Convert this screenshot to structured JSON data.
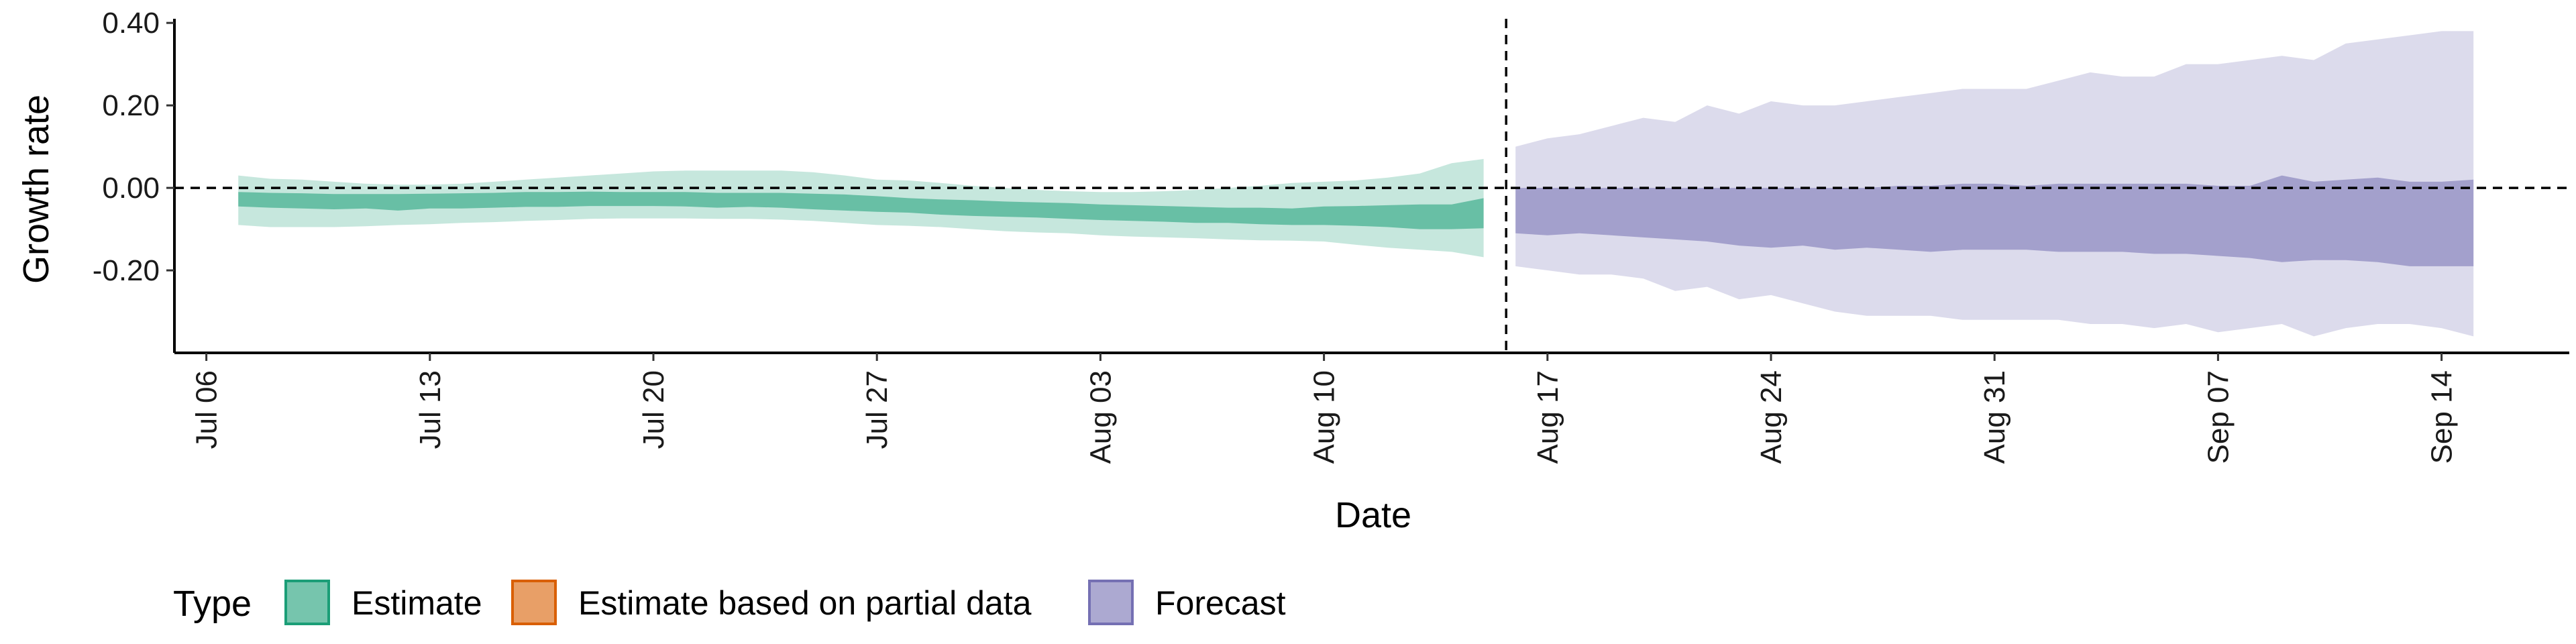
{
  "chart_data": {
    "type": "area",
    "xlabel": "Date",
    "ylabel": "Growth rate",
    "y_ticks": [
      "0.40",
      "0.20",
      "0.00",
      "-0.20"
    ],
    "x_ticks": [
      {
        "date": "2020-07-06",
        "label": "Jul 06"
      },
      {
        "date": "2020-07-13",
        "label": "Jul 13"
      },
      {
        "date": "2020-07-20",
        "label": "Jul 20"
      },
      {
        "date": "2020-07-27",
        "label": "Jul 27"
      },
      {
        "date": "2020-08-03",
        "label": "Aug 03"
      },
      {
        "date": "2020-08-10",
        "label": "Aug 10"
      },
      {
        "date": "2020-08-17",
        "label": "Aug 17"
      },
      {
        "date": "2020-08-24",
        "label": "Aug 24"
      },
      {
        "date": "2020-08-31",
        "label": "Aug 31"
      },
      {
        "date": "2020-09-07",
        "label": "Sep 07"
      },
      {
        "date": "2020-09-14",
        "label": "Sep 14"
      }
    ],
    "xlim": [
      "2020-07-05",
      "2020-09-18"
    ],
    "ylim": [
      -0.4,
      0.41
    ],
    "forecast_start": "2020-08-16",
    "reference_line_y": 0,
    "legend": {
      "title": "Type",
      "position": "bottom-left",
      "items": [
        {
          "label": "Estimate",
          "fill": "#1b9e77",
          "stroke": "#1b9e77"
        },
        {
          "label": "Estimate based on partial data",
          "fill": "#d95f02",
          "stroke": "#d95f02"
        },
        {
          "label": "Forecast",
          "fill": "#7570b3",
          "stroke": "#7570b3"
        }
      ]
    },
    "series": [
      {
        "name": "Estimate",
        "color": "#1b9e77",
        "x": [
          "2020-07-07",
          "2020-07-08",
          "2020-07-09",
          "2020-07-10",
          "2020-07-11",
          "2020-07-12",
          "2020-07-13",
          "2020-07-14",
          "2020-07-15",
          "2020-07-16",
          "2020-07-17",
          "2020-07-18",
          "2020-07-19",
          "2020-07-20",
          "2020-07-21",
          "2020-07-22",
          "2020-07-23",
          "2020-07-24",
          "2020-07-25",
          "2020-07-26",
          "2020-07-27",
          "2020-07-28",
          "2020-07-29",
          "2020-07-30",
          "2020-07-31",
          "2020-08-01",
          "2020-08-02",
          "2020-08-03",
          "2020-08-04",
          "2020-08-05",
          "2020-08-06",
          "2020-08-07",
          "2020-08-08",
          "2020-08-09",
          "2020-08-10",
          "2020-08-11",
          "2020-08-12",
          "2020-08-13",
          "2020-08-14",
          "2020-08-15"
        ],
        "lower_90": [
          -0.09,
          -0.095,
          -0.095,
          -0.095,
          -0.093,
          -0.09,
          -0.088,
          -0.085,
          -0.083,
          -0.08,
          -0.078,
          -0.075,
          -0.074,
          -0.074,
          -0.074,
          -0.075,
          -0.075,
          -0.077,
          -0.08,
          -0.085,
          -0.09,
          -0.092,
          -0.095,
          -0.1,
          -0.105,
          -0.108,
          -0.11,
          -0.115,
          -0.118,
          -0.12,
          -0.122,
          -0.125,
          -0.127,
          -0.128,
          -0.13,
          -0.138,
          -0.145,
          -0.15,
          -0.155,
          -0.168
        ],
        "lower_50": [
          -0.045,
          -0.048,
          -0.05,
          -0.052,
          -0.05,
          -0.055,
          -0.05,
          -0.05,
          -0.048,
          -0.046,
          -0.046,
          -0.044,
          -0.044,
          -0.044,
          -0.045,
          -0.048,
          -0.046,
          -0.048,
          -0.052,
          -0.055,
          -0.058,
          -0.06,
          -0.065,
          -0.068,
          -0.07,
          -0.072,
          -0.075,
          -0.078,
          -0.08,
          -0.082,
          -0.085,
          -0.085,
          -0.088,
          -0.09,
          -0.09,
          -0.092,
          -0.095,
          -0.1,
          -0.1,
          -0.098
        ],
        "upper_50": [
          -0.01,
          -0.012,
          -0.013,
          -0.015,
          -0.015,
          -0.015,
          -0.014,
          -0.013,
          -0.012,
          -0.01,
          -0.01,
          -0.009,
          -0.01,
          -0.01,
          -0.01,
          -0.012,
          -0.012,
          -0.012,
          -0.014,
          -0.016,
          -0.02,
          -0.025,
          -0.028,
          -0.03,
          -0.033,
          -0.035,
          -0.037,
          -0.04,
          -0.042,
          -0.044,
          -0.046,
          -0.048,
          -0.048,
          -0.05,
          -0.045,
          -0.044,
          -0.042,
          -0.04,
          -0.04,
          -0.025
        ],
        "upper_90": [
          0.03,
          0.022,
          0.02,
          0.015,
          0.01,
          0.008,
          0.008,
          0.01,
          0.015,
          0.02,
          0.025,
          0.03,
          0.035,
          0.04,
          0.042,
          0.042,
          0.042,
          0.042,
          0.038,
          0.03,
          0.02,
          0.018,
          0.012,
          0.005,
          0.0,
          -0.005,
          -0.008,
          -0.01,
          -0.01,
          -0.008,
          -0.005,
          0.0,
          0.005,
          0.012,
          0.015,
          0.018,
          0.025,
          0.035,
          0.06,
          0.07
        ]
      },
      {
        "name": "Forecast",
        "color": "#7570b3",
        "x": [
          "2020-08-16",
          "2020-08-17",
          "2020-08-18",
          "2020-08-19",
          "2020-08-20",
          "2020-08-21",
          "2020-08-22",
          "2020-08-23",
          "2020-08-24",
          "2020-08-25",
          "2020-08-26",
          "2020-08-27",
          "2020-08-28",
          "2020-08-29",
          "2020-08-30",
          "2020-08-31",
          "2020-09-01",
          "2020-09-02",
          "2020-09-03",
          "2020-09-04",
          "2020-09-05",
          "2020-09-06",
          "2020-09-07",
          "2020-09-08",
          "2020-09-09",
          "2020-09-10",
          "2020-09-11",
          "2020-09-12",
          "2020-09-13",
          "2020-09-14",
          "2020-09-15"
        ],
        "lower_90": [
          -0.19,
          -0.2,
          -0.21,
          -0.21,
          -0.22,
          -0.25,
          -0.24,
          -0.27,
          -0.26,
          -0.28,
          -0.3,
          -0.31,
          -0.31,
          -0.31,
          -0.32,
          -0.32,
          -0.32,
          -0.32,
          -0.33,
          -0.33,
          -0.34,
          -0.33,
          -0.35,
          -0.34,
          -0.33,
          -0.36,
          -0.34,
          -0.33,
          -0.33,
          -0.34,
          -0.36
        ],
        "lower_50": [
          -0.11,
          -0.115,
          -0.11,
          -0.115,
          -0.12,
          -0.125,
          -0.13,
          -0.14,
          -0.145,
          -0.14,
          -0.15,
          -0.145,
          -0.15,
          -0.155,
          -0.15,
          -0.15,
          -0.15,
          -0.155,
          -0.155,
          -0.155,
          -0.16,
          -0.16,
          -0.165,
          -0.17,
          -0.18,
          -0.175,
          -0.175,
          -0.18,
          -0.19,
          -0.19,
          -0.19
        ],
        "upper_50": [
          0.0,
          0.0,
          0.0,
          0.0,
          0.0,
          0.0,
          0.0,
          0.0,
          0.0,
          0.0,
          0.0,
          0.0,
          0.005,
          0.005,
          0.01,
          0.01,
          0.005,
          0.01,
          0.01,
          0.01,
          0.01,
          0.01,
          0.005,
          0.005,
          0.03,
          0.015,
          0.02,
          0.025,
          0.015,
          0.015,
          0.02
        ],
        "upper_90": [
          0.1,
          0.12,
          0.13,
          0.15,
          0.17,
          0.16,
          0.2,
          0.18,
          0.21,
          0.2,
          0.2,
          0.21,
          0.22,
          0.23,
          0.24,
          0.24,
          0.24,
          0.26,
          0.28,
          0.27,
          0.27,
          0.3,
          0.3,
          0.31,
          0.32,
          0.31,
          0.35,
          0.36,
          0.37,
          0.38,
          0.38
        ]
      }
    ]
  }
}
